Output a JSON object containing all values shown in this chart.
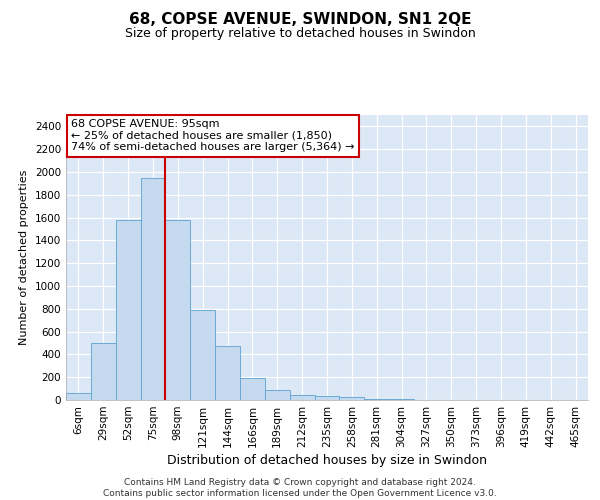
{
  "title": "68, COPSE AVENUE, SWINDON, SN1 2QE",
  "subtitle": "Size of property relative to detached houses in Swindon",
  "xlabel": "Distribution of detached houses by size in Swindon",
  "ylabel": "Number of detached properties",
  "footer_line1": "Contains HM Land Registry data © Crown copyright and database right 2024.",
  "footer_line2": "Contains public sector information licensed under the Open Government Licence v3.0.",
  "annotation_line1": "68 COPSE AVENUE: 95sqm",
  "annotation_line2": "← 25% of detached houses are smaller (1,850)",
  "annotation_line3": "74% of semi-detached houses are larger (5,364) →",
  "bar_color": "#c5d9ef",
  "bar_edge_color": "#6aaad4",
  "vline_color": "#cc0000",
  "vline_x": 3.5,
  "categories": [
    "6sqm",
    "29sqm",
    "52sqm",
    "75sqm",
    "98sqm",
    "121sqm",
    "144sqm",
    "166sqm",
    "189sqm",
    "212sqm",
    "235sqm",
    "258sqm",
    "281sqm",
    "304sqm",
    "327sqm",
    "350sqm",
    "373sqm",
    "396sqm",
    "419sqm",
    "442sqm",
    "465sqm"
  ],
  "values": [
    60,
    500,
    1580,
    1950,
    1580,
    790,
    470,
    190,
    90,
    45,
    35,
    25,
    10,
    5,
    3,
    2,
    1,
    0,
    0,
    0,
    0
  ],
  "ylim": [
    0,
    2500
  ],
  "yticks": [
    0,
    200,
    400,
    600,
    800,
    1000,
    1200,
    1400,
    1600,
    1800,
    2000,
    2200,
    2400
  ],
  "plot_bg_color": "#dce8f5",
  "grid_color": "white",
  "title_fontsize": 11,
  "subtitle_fontsize": 9,
  "xlabel_fontsize": 9,
  "ylabel_fontsize": 8,
  "tick_fontsize": 7.5,
  "footer_fontsize": 6.5,
  "annotation_fontsize": 8
}
